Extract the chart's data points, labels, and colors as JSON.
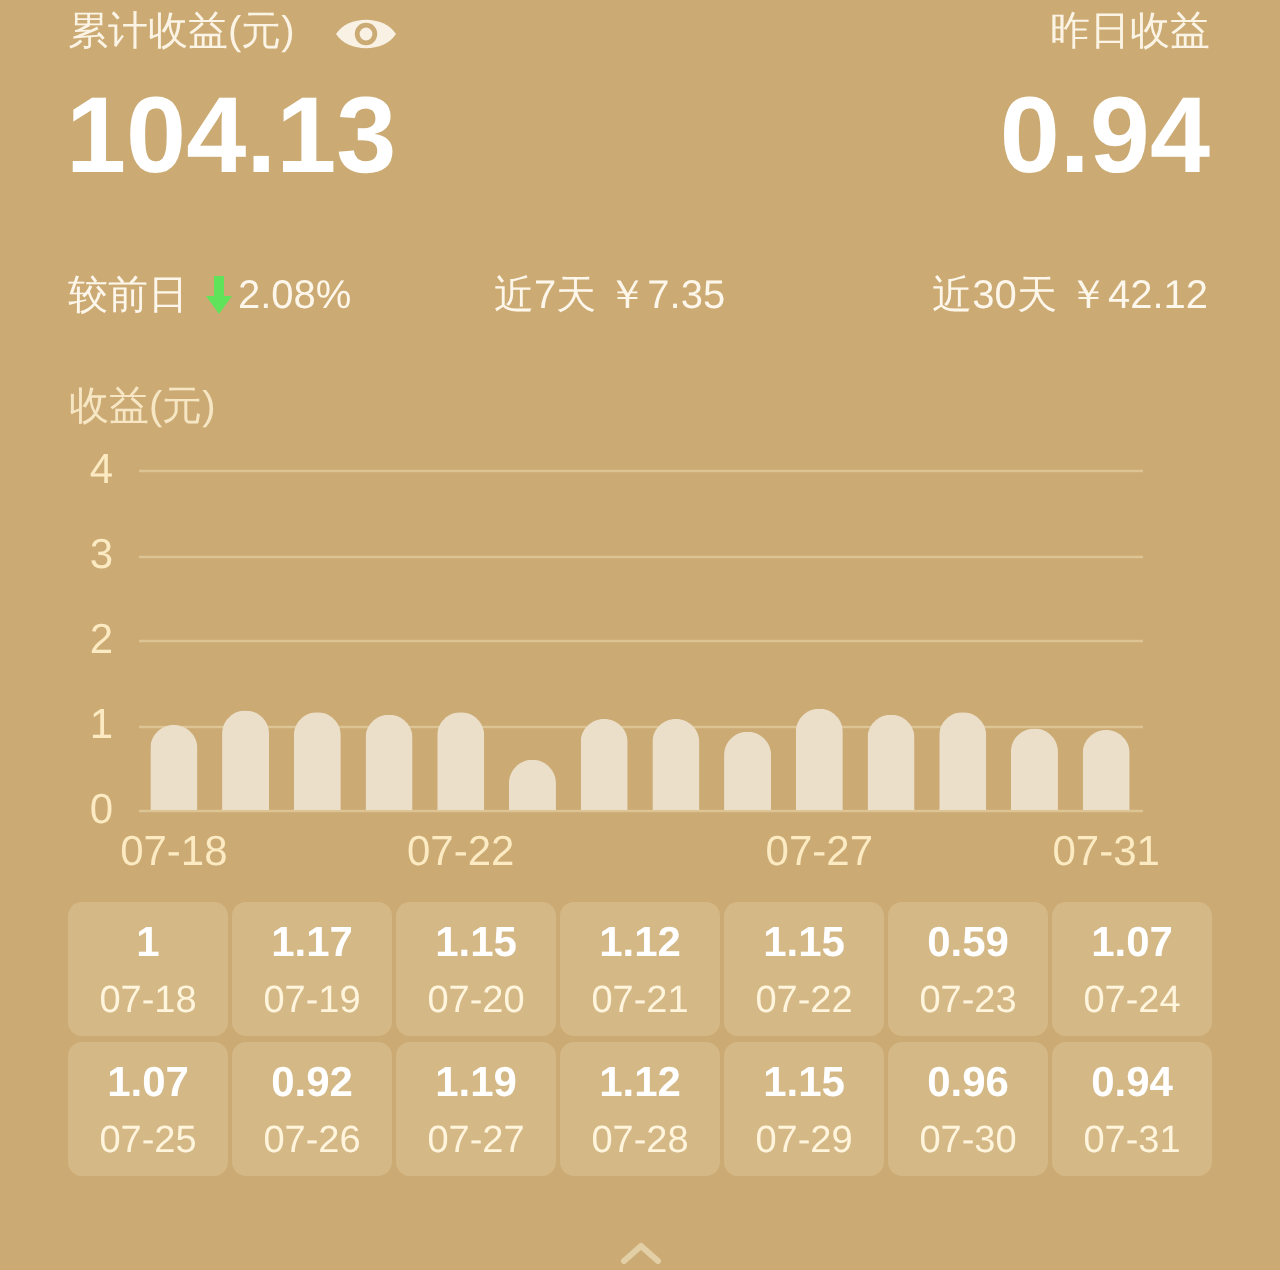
{
  "chart_data": [
    {
      "type": "bar",
      "ylabel": "收益(元)",
      "categories": [
        "07-18",
        null,
        null,
        null,
        "07-22",
        null,
        null,
        null,
        null,
        "07-27",
        null,
        null,
        null,
        "07-31"
      ],
      "values": [
        1,
        1.17,
        1.15,
        1.12,
        1.15,
        0.59,
        1.07,
        1.07,
        0.92,
        1.19,
        1.12,
        1.15,
        0.96,
        0.94
      ],
      "color": "#ebdfca",
      "ylim": [
        0,
        4
      ],
      "yticks": [
        0,
        1,
        2,
        3,
        4
      ],
      "grid": "y",
      "annotations": [
        "累计收益(元)",
        "104.13",
        "昨日收益",
        "0.94",
        "较前日",
        "2.08%",
        "近7天 ￥7.35",
        "近30天 ￥42.12"
      ]
    },
    {
      "type": "other",
      "categories": [
        "07-18",
        "07-19",
        "07-20",
        "07-21",
        "07-22",
        "07-23",
        "07-24",
        "07-25",
        "07-26",
        "07-27",
        "07-28",
        "07-29",
        "07-30",
        "07-31"
      ],
      "values": [
        1,
        1.17,
        1.15,
        1.12,
        1.15,
        0.59,
        1.07,
        1.07,
        0.92,
        1.19,
        1.12,
        1.15,
        0.96,
        0.94
      ],
      "data_labels": true
    }
  ]
}
